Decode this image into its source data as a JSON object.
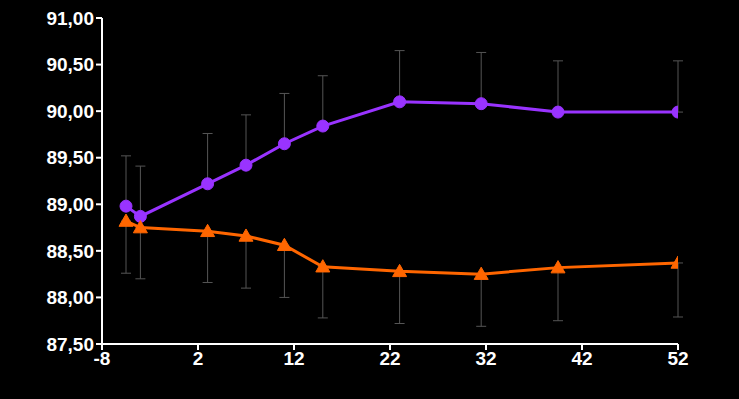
{
  "chart_data": {
    "type": "line",
    "x": [
      -5.5,
      -4,
      3,
      7,
      11,
      15,
      23,
      31.5,
      39.5,
      52
    ],
    "series": [
      {
        "color": "#9933ff",
        "marker": "circle",
        "values": [
          88.98,
          88.87,
          89.22,
          89.42,
          89.65,
          89.84,
          90.1,
          90.08,
          89.99,
          89.99
        ],
        "error_upper": [
          0.54,
          0.54,
          0.54,
          0.54,
          0.54,
          0.54,
          0.55,
          0.55,
          0.55,
          0.55
        ]
      },
      {
        "color": "#ff6600",
        "marker": "triangle",
        "values": [
          88.82,
          88.75,
          88.71,
          88.66,
          88.56,
          88.33,
          88.28,
          88.25,
          88.32,
          88.37
        ],
        "error_lower": [
          0.56,
          0.55,
          0.55,
          0.56,
          0.56,
          0.55,
          0.56,
          0.56,
          0.57,
          0.58
        ]
      }
    ],
    "xlim": [
      -8,
      52
    ],
    "xticks": [
      -8,
      2,
      12,
      22,
      32,
      42,
      52
    ],
    "ylim": [
      87.5,
      91.0
    ],
    "yticks": [
      {
        "value": 87.5,
        "label": "87,50"
      },
      {
        "value": 88.0,
        "label": "88,00"
      },
      {
        "value": 88.5,
        "label": "88,50"
      },
      {
        "value": 89.0,
        "label": "89,00"
      },
      {
        "value": 89.5,
        "label": "89,50"
      },
      {
        "value": 90.0,
        "label": "90,00"
      },
      {
        "value": 90.5,
        "label": "90,50"
      },
      {
        "value": 91.0,
        "label": "91,00"
      }
    ],
    "grid": false
  }
}
